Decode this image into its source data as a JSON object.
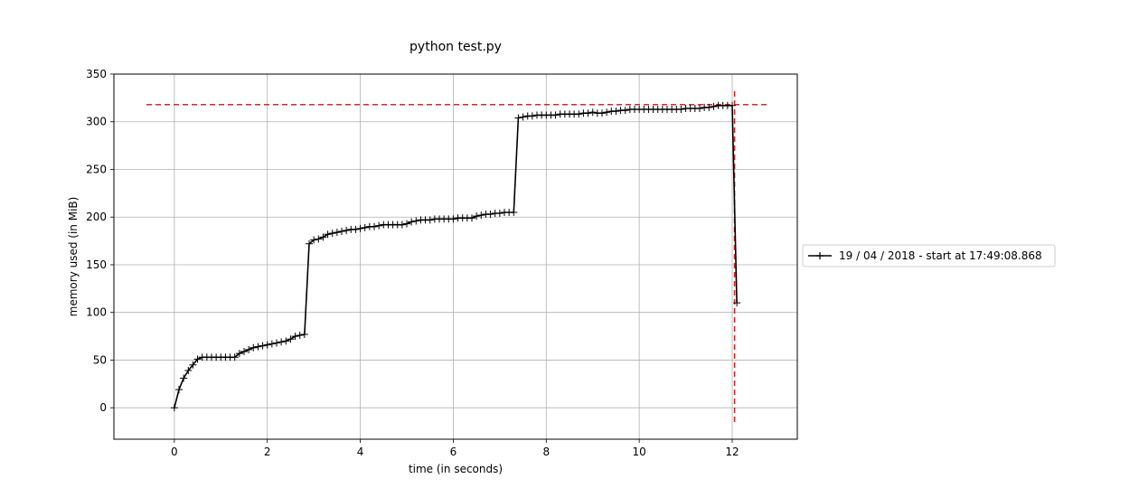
{
  "chart_data": {
    "type": "line",
    "title": "python test.py",
    "xlabel": "time (in seconds)",
    "ylabel": "memory used (in MiB)",
    "xlim": [
      -1.3,
      13.4
    ],
    "ylim": [
      -33,
      350
    ],
    "xticks": [
      0,
      2,
      4,
      6,
      8,
      10,
      12
    ],
    "yticks": [
      0,
      50,
      100,
      150,
      200,
      250,
      300,
      350
    ],
    "grid": true,
    "legend_position": "right, outside plot area",
    "series": [
      {
        "name": "19 / 04 / 2018 - start at 17:49:08.868",
        "color": "#000000",
        "marker": "+",
        "x": [
          0.0,
          0.1,
          0.2,
          0.3,
          0.4,
          0.5,
          0.6,
          0.7,
          0.8,
          0.9,
          1.0,
          1.1,
          1.2,
          1.3,
          1.4,
          1.5,
          1.6,
          1.7,
          1.8,
          1.9,
          2.0,
          2.1,
          2.2,
          2.3,
          2.4,
          2.5,
          2.6,
          2.7,
          2.8,
          2.9,
          3.0,
          3.1,
          3.2,
          3.3,
          3.4,
          3.5,
          3.6,
          3.7,
          3.8,
          3.9,
          4.0,
          4.1,
          4.2,
          4.3,
          4.4,
          4.5,
          4.6,
          4.7,
          4.8,
          4.9,
          5.0,
          5.1,
          5.2,
          5.3,
          5.4,
          5.5,
          5.6,
          5.7,
          5.8,
          5.9,
          6.0,
          6.1,
          6.2,
          6.3,
          6.4,
          6.5,
          6.6,
          6.7,
          6.8,
          6.9,
          7.0,
          7.1,
          7.2,
          7.3,
          7.4,
          7.5,
          7.6,
          7.7,
          7.8,
          7.9,
          8.0,
          8.1,
          8.2,
          8.3,
          8.4,
          8.5,
          8.6,
          8.7,
          8.8,
          8.9,
          9.0,
          9.1,
          9.2,
          9.3,
          9.4,
          9.5,
          9.6,
          9.7,
          9.8,
          9.9,
          10.0,
          10.1,
          10.2,
          10.3,
          10.4,
          10.5,
          10.6,
          10.7,
          10.8,
          10.9,
          11.0,
          11.1,
          11.2,
          11.3,
          11.4,
          11.5,
          11.6,
          11.7,
          11.8,
          11.9,
          12.0,
          12.1
        ],
        "y": [
          0,
          19,
          31,
          39,
          45,
          51,
          53,
          53,
          53,
          53,
          53,
          53,
          53,
          53,
          57,
          59,
          61,
          63,
          64,
          65,
          66,
          67,
          68,
          69,
          70,
          72,
          75,
          76,
          77,
          172,
          176,
          177,
          179,
          182,
          183,
          184,
          185,
          186,
          187,
          187,
          188,
          189,
          190,
          190,
          191,
          192,
          192,
          192,
          192,
          192,
          193,
          195,
          196,
          197,
          197,
          197,
          198,
          198,
          198,
          198,
          198,
          199,
          199,
          199,
          199,
          201,
          202,
          203,
          203,
          204,
          204,
          205,
          205,
          205,
          304,
          305,
          306,
          306,
          307,
          307,
          307,
          307,
          307,
          308,
          308,
          308,
          308,
          308,
          309,
          309,
          310,
          309,
          309,
          310,
          311,
          311,
          312,
          312,
          313,
          313,
          313,
          313,
          313,
          313,
          313,
          313,
          313,
          313,
          313,
          313,
          314,
          314,
          314,
          314,
          315,
          315,
          316,
          317,
          317,
          317,
          317,
          110
        ]
      }
    ],
    "reference_lines": [
      {
        "orientation": "horizontal",
        "y": 318,
        "x_from": -0.6,
        "x_to": 12.8,
        "color": "#d62728",
        "style": "dashed"
      },
      {
        "orientation": "vertical",
        "x": 12.05,
        "y_from": -15,
        "y_to": 335,
        "color": "#d62728",
        "style": "dashed"
      }
    ]
  }
}
